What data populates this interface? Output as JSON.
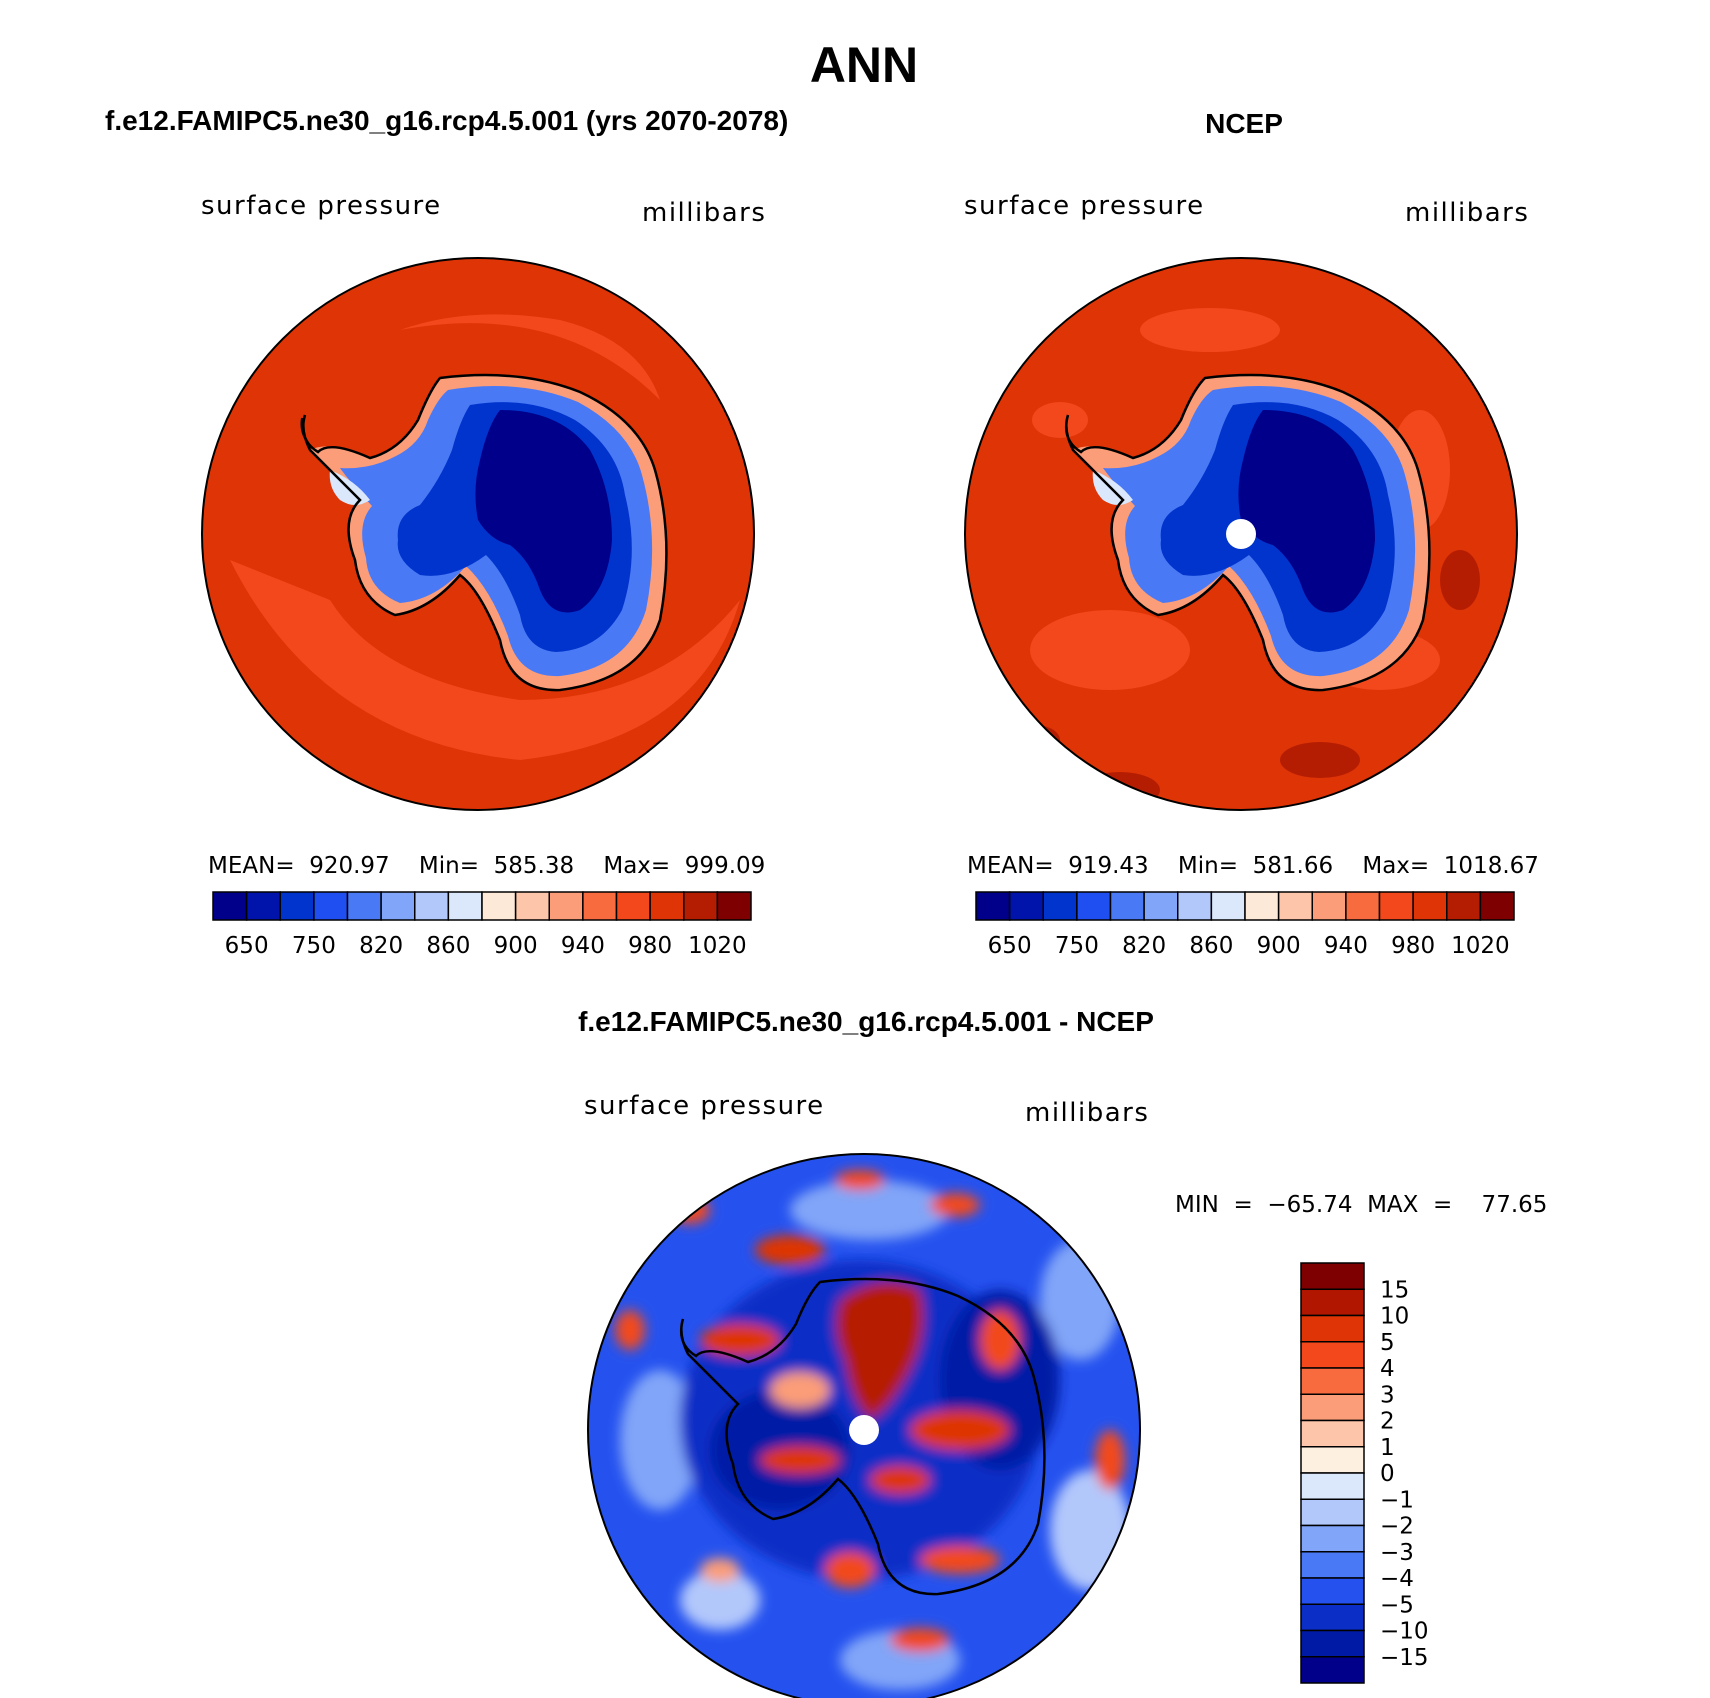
{
  "main_title": "ANN",
  "panels": [
    {
      "id": "model",
      "header": "f.e12.FAMIPC5.ne30_g16.rcp4.5.001 (yrs 2070-2078)",
      "variable": "surface pressure",
      "units": "millibars",
      "stats": {
        "mean": "920.97",
        "min": "585.38",
        "max": "999.09"
      },
      "stats_text": "MEAN=  920.97    Min=  585.38    Max=  999.09"
    },
    {
      "id": "obs",
      "header": "NCEP",
      "variable": "surface pressure",
      "units": "millibars",
      "stats": {
        "mean": "919.43",
        "min": "581.66",
        "max": "1018.67"
      },
      "stats_text": "MEAN=  919.43    Min=  581.66    Max=  1018.67"
    },
    {
      "id": "diff",
      "header": "f.e12.FAMIPC5.ne30_g16.rcp4.5.001 - NCEP",
      "variable": "surface pressure",
      "units": "millibars",
      "stats": {
        "min": "−65.74",
        "max": "77.65"
      },
      "stats_text": "MIN  =  −65.74  MAX  =    77.65"
    }
  ],
  "colorbar_top": {
    "colors": [
      "#00008a",
      "#0014ab",
      "#0034cc",
      "#1f4ff0",
      "#4a79f5",
      "#81a5f8",
      "#b2c8fb",
      "#dbe8fb",
      "#fde9d8",
      "#fdc6aa",
      "#fb9d78",
      "#f76b3f",
      "#f2481b",
      "#de3406",
      "#b51d02",
      "#7e0000"
    ],
    "labels": [
      "650",
      "750",
      "820",
      "860",
      "900",
      "940",
      "980",
      "1020"
    ]
  },
  "colorbar_diff": {
    "colors": [
      "#7e0000",
      "#b01600",
      "#de3406",
      "#f2481b",
      "#f76b3f",
      "#fb9d78",
      "#fdc6aa",
      "#fdf0e0",
      "#dbe8fb",
      "#b2c8fb",
      "#81a5f8",
      "#4a79f5",
      "#2552ef",
      "#0a2ec6",
      "#001aa6",
      "#00008a"
    ],
    "labels": [
      "15",
      "10",
      "5",
      "4",
      "3",
      "2",
      "1",
      "0",
      "−1",
      "−2",
      "−3",
      "−4",
      "−5",
      "−10",
      "−15"
    ]
  },
  "map_colors": {
    "ocean_high": "#de3406",
    "ocean_mid": "#f2481b",
    "coast": "#fb9d78",
    "ice_edge": "#4a79f5",
    "ice_mid": "#0034cc",
    "ice_core": "#00008a",
    "diff_blue": "#0a2ec6",
    "diff_red": "#b51d02"
  }
}
